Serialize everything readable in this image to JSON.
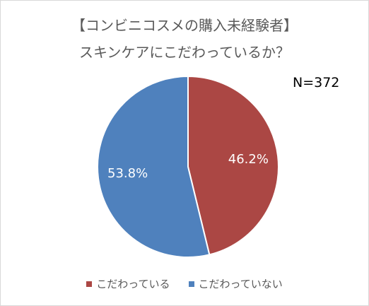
{
  "chart_data": {
    "type": "pie",
    "title_line1": "【コンビニコスメの購入未経験者】",
    "title_line2": "スキンケアにこだわっているか？",
    "annotation": "N=372",
    "start_angle_deg": 0,
    "direction": "clockwise",
    "slices": [
      {
        "name": "こだわっている",
        "value": 46.2,
        "label": "46.2%",
        "color": "#ab4744"
      },
      {
        "name": "こだわっていない",
        "value": 53.8,
        "label": "53.8%",
        "color": "#4f81bd"
      }
    ],
    "legend_position": "bottom"
  }
}
